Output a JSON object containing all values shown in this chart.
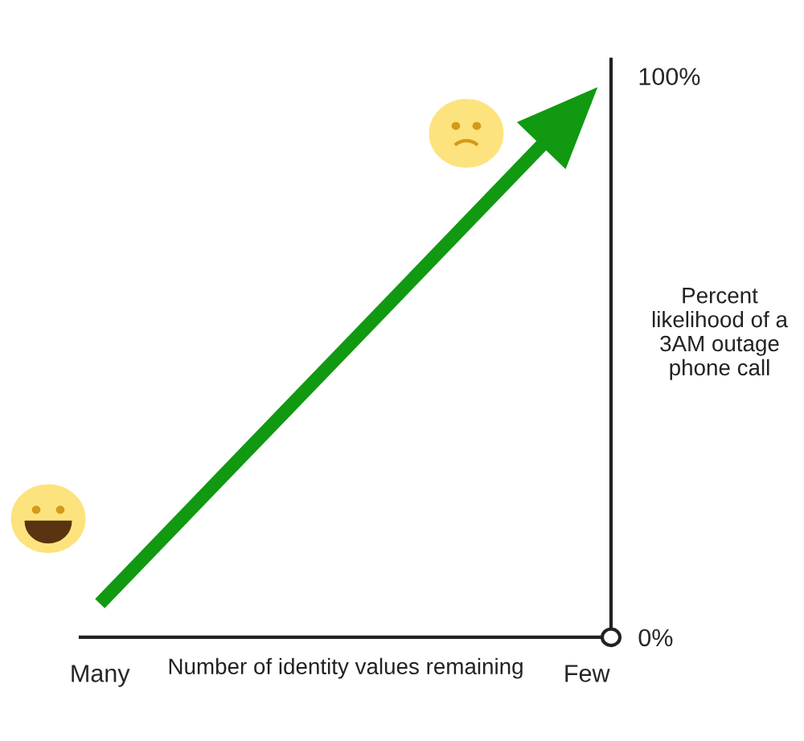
{
  "chart_data": {
    "type": "line",
    "categories": [
      "Many",
      "Few"
    ],
    "xlabel": "Number of identity values remaining",
    "ylabel": "Percent likelihood of a 3AM outage phone call",
    "series": [
      {
        "color": "#119911",
        "values": [
          6,
          96
        ]
      }
    ],
    "ylim": [
      0,
      103
    ],
    "yticks": [
      {
        "value": 0,
        "label": "0%"
      },
      {
        "value": 100,
        "label": "100%"
      }
    ],
    "grid": false,
    "legend": false,
    "marker": "none",
    "line_style": "solid"
  }
}
